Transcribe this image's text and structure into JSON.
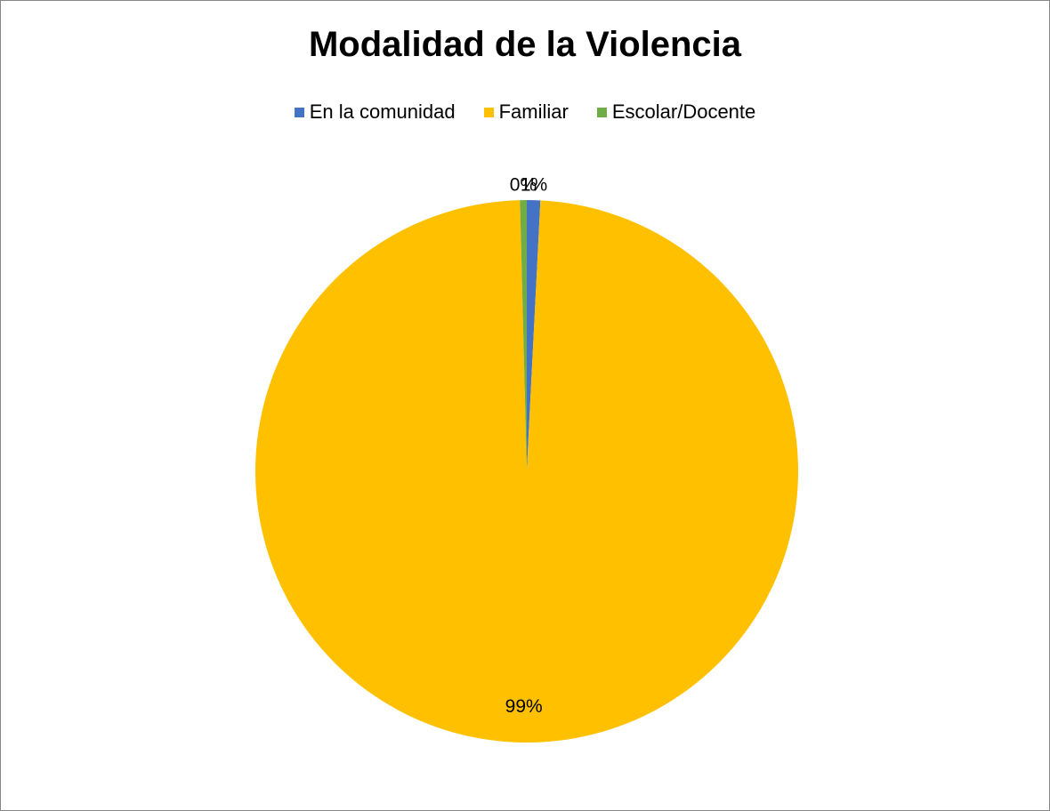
{
  "chart_data": {
    "type": "pie",
    "title": "Modalidad de la Violencia",
    "legend_position": "top",
    "slices": [
      {
        "name": "En la comunidad",
        "value": 0.8,
        "label": "1%",
        "color": "#4472C4"
      },
      {
        "name": "Familiar",
        "value": 98.8,
        "label": "99%",
        "color": "#FFC000"
      },
      {
        "name": "Escolar/Docente",
        "value": 0.4,
        "label": "0%",
        "color": "#70AD47"
      }
    ]
  }
}
